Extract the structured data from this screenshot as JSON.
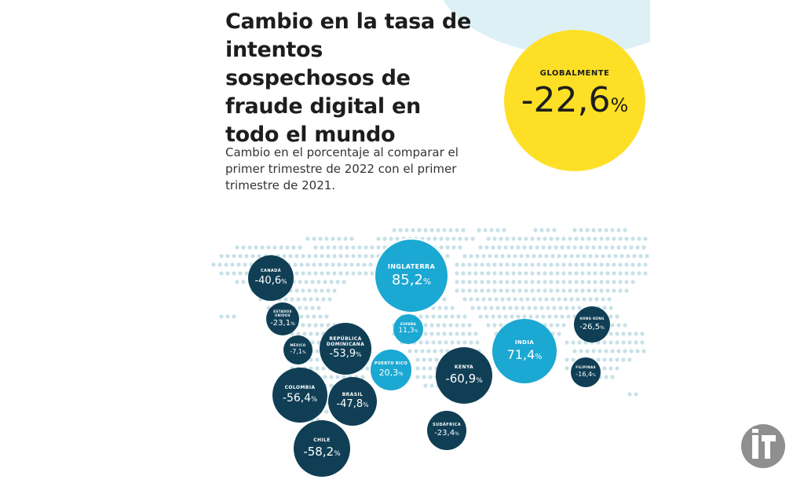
{
  "title": "Cambio en la tasa de intentos sospechosos de fraude digital en todo el mundo",
  "subtitle": "Cambio en el porcentaje al comparar el primer trimestre de 2022 con el primer trimestre de 2021.",
  "global": {
    "label": "GLOBALMENTE",
    "value": "-22,6",
    "unit": "%"
  },
  "colors": {
    "dark_bubble": "#103f55",
    "light_bubble": "#1ba8d2",
    "global": "#fde026",
    "map_dots": "#c9e1e8"
  },
  "regions": [
    {
      "name": "CANADÁ",
      "value": "-40,6",
      "unit": "%"
    },
    {
      "name": "INGLATERRA",
      "value": "85,2",
      "unit": "%"
    },
    {
      "name": "ESTADOS UNIDOS",
      "value": "-23,1",
      "unit": "%"
    },
    {
      "name": "ESPAÑA",
      "value": "11,3",
      "unit": "%"
    },
    {
      "name": "MÉXICO",
      "value": "-7,1",
      "unit": "%"
    },
    {
      "name": "REPÚBLICA DOMINICANA",
      "value": "-53,9",
      "unit": "%"
    },
    {
      "name": "PUERTO RICO",
      "value": "20,3",
      "unit": "%"
    },
    {
      "name": "COLOMBIA",
      "value": "-56,4",
      "unit": "%"
    },
    {
      "name": "BRASIL",
      "value": "-47,8",
      "unit": "%"
    },
    {
      "name": "CHILE",
      "value": "-58,2",
      "unit": "%"
    },
    {
      "name": "KENYA",
      "value": "-60,9",
      "unit": "%"
    },
    {
      "name": "INDIA",
      "value": "71,4",
      "unit": "%"
    },
    {
      "name": "HONG KONG",
      "value": "-26,5",
      "unit": "%"
    },
    {
      "name": "FILIPINAS",
      "value": "-16,4",
      "unit": "%"
    },
    {
      "name": "SUDÁFRICA",
      "value": "-23,4",
      "unit": "%"
    }
  ],
  "logo": {
    "icon": "it-logo-icon",
    "text": "IT"
  }
}
